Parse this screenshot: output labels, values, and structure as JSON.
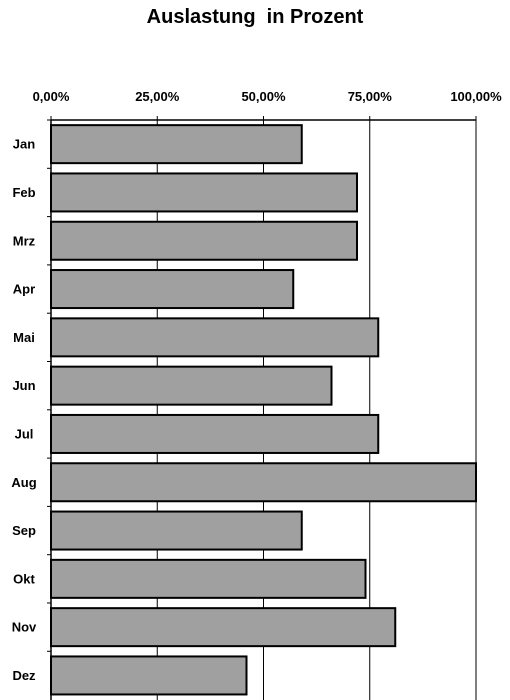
{
  "chart_data": {
    "type": "bar",
    "orientation": "horizontal",
    "title": "Auslastung  in Prozent",
    "xlabel": "",
    "ylabel": "",
    "categories": [
      "Jan",
      "Feb",
      "Mrz",
      "Apr",
      "Mai",
      "Jun",
      "Jul",
      "Aug",
      "Sep",
      "Okt",
      "Nov",
      "Dez"
    ],
    "values": [
      59,
      72,
      72,
      57,
      77,
      66,
      77,
      100,
      59,
      74,
      81,
      46
    ],
    "value_unit": "%",
    "xlim": [
      0,
      100
    ],
    "xticks": [
      0,
      25,
      50,
      75,
      100
    ],
    "xtick_labels": [
      "0,00%",
      "25,00%",
      "50,00%",
      "75,00%",
      "100,00%"
    ],
    "x_axis_position": "top",
    "grid": "vertical",
    "legend": "none",
    "colors": {
      "bar_fill": "#a0a0a0",
      "bar_stroke": "#000000",
      "grid": "#000000",
      "background": "#ffffff"
    }
  }
}
